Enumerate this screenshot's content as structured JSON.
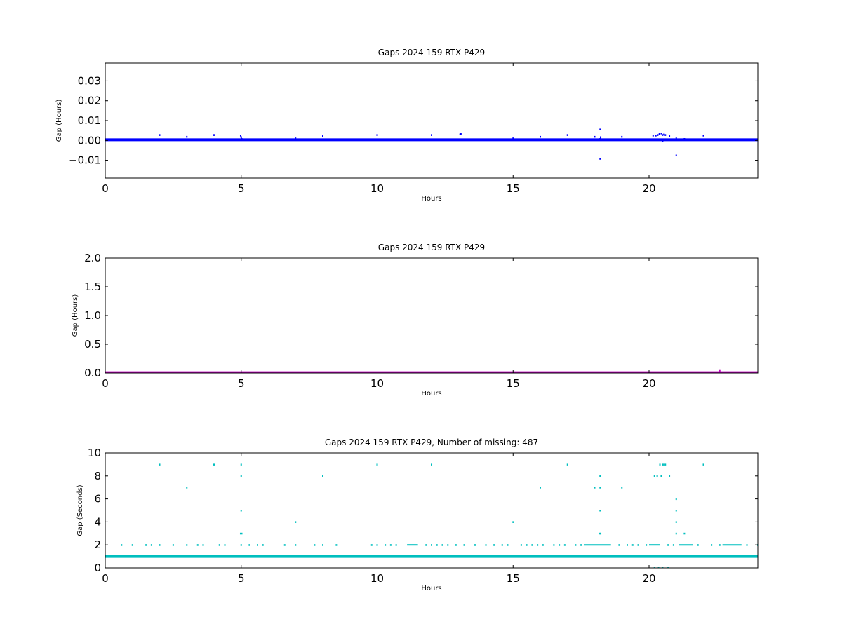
{
  "chart_data": [
    {
      "type": "scatter",
      "title": "Gaps 2024 159 RTX  P429",
      "xlabel": "Hours",
      "ylabel": "Gap (Hours)",
      "xlim": [
        0,
        24
      ],
      "ylim": [
        -0.019,
        0.039
      ],
      "xticks": [
        0,
        5,
        10,
        15,
        20
      ],
      "yticks": [
        -0.01,
        0.0,
        0.01,
        0.02,
        0.03
      ],
      "ytick_labels": [
        "−0.01",
        "0.00",
        "0.01",
        "0.02",
        "0.03"
      ],
      "grid": false,
      "color": "#0000ff",
      "baseline": {
        "y": 0.0003,
        "x_start": 0,
        "x_end": 24
      },
      "series": [
        {
          "x": [
            2.0,
            3.0,
            4.0,
            4.98,
            5.0,
            5.02,
            7.0,
            8.0,
            10.0,
            12.0,
            13.05,
            13.08,
            15.0,
            16.0,
            17.0,
            18.0,
            18.2,
            18.2,
            18.22,
            18.2,
            19.0,
            20.15,
            20.25,
            20.32,
            20.38,
            20.45,
            20.5,
            20.55,
            20.6,
            20.5,
            20.75,
            21.0,
            21.0,
            21.3,
            22.0,
            22.6
          ],
          "y": [
            0.0028,
            0.0019,
            0.0028,
            0.0025,
            0.0017,
            0.0008,
            0.0011,
            0.0022,
            0.0028,
            0.0028,
            0.0031,
            0.0033,
            0.0011,
            0.0019,
            0.0028,
            0.0019,
            0.0056,
            0.0008,
            0.0017,
            -0.0092,
            0.0019,
            0.0025,
            0.0025,
            0.0028,
            0.0033,
            0.0036,
            0.0028,
            0.0031,
            0.0028,
            -0.0003,
            0.0022,
            0.0011,
            -0.0075,
            0.0008,
            0.0025,
            0.0003
          ]
        }
      ]
    },
    {
      "type": "scatter",
      "title": "Gaps 2024 159 RTX  P429",
      "xlabel": "Hours",
      "ylabel": "Gap (Hours)",
      "xlim": [
        0,
        24
      ],
      "ylim": [
        0,
        2.0
      ],
      "xticks": [
        0,
        5,
        10,
        15,
        20
      ],
      "yticks": [
        0.0,
        0.5,
        1.0,
        1.5,
        2.0
      ],
      "ytick_labels": [
        "0.0",
        "0.5",
        "1.0",
        "1.5",
        "2.0"
      ],
      "grid": false,
      "color": "#bf00bf",
      "baseline": {
        "y": 0.005,
        "x_start": 0,
        "x_end": 24
      },
      "series": [
        {
          "x": [
            22.6
          ],
          "y": [
            0.04
          ]
        }
      ]
    },
    {
      "type": "scatter",
      "title": "Gaps 2024 159 RTX  P429, Number of missing: 487",
      "xlabel": "Hours",
      "ylabel": "Gap (Seconds)",
      "xlim": [
        0,
        24
      ],
      "ylim": [
        0,
        10
      ],
      "xticks": [
        0,
        5,
        10,
        15,
        20
      ],
      "yticks": [
        0,
        2,
        4,
        6,
        8,
        10
      ],
      "ytick_labels": [
        "0",
        "2",
        "4",
        "6",
        "8",
        "10"
      ],
      "grid": false,
      "color": "#00bfbf",
      "baseline": {
        "y": 1,
        "x_start": 0,
        "x_end": 24
      },
      "dense_bands": [
        {
          "x_start": 11.1,
          "x_end": 11.5,
          "y": 2
        },
        {
          "x_start": 17.6,
          "x_end": 18.6,
          "y": 2
        },
        {
          "x_start": 20.0,
          "x_end": 20.4,
          "y": 2
        },
        {
          "x_start": 21.1,
          "x_end": 21.6,
          "y": 2
        },
        {
          "x_start": 22.7,
          "x_end": 23.4,
          "y": 2
        }
      ],
      "series": [
        {
          "x": [
            2.0,
            4.0,
            5.0,
            10.0,
            12.0,
            17.0,
            20.4,
            20.5,
            20.55,
            20.6,
            22.0,
            5.0,
            8.0,
            18.2,
            20.2,
            20.3,
            20.45,
            20.75,
            3.0,
            16.0,
            18.0,
            18.2,
            19.0,
            21.0,
            5.0,
            18.2,
            21.0,
            7.0,
            15.0,
            21.0,
            4.98,
            5.02,
            18.18,
            18.22,
            21.0,
            21.3,
            20.2,
            20.35,
            20.5,
            20.7,
            0.6,
            1.0,
            1.5,
            1.7,
            2.0,
            2.5,
            3.0,
            3.4,
            3.6,
            4.2,
            4.4,
            5.0,
            5.3,
            5.6,
            5.8,
            6.6,
            7.0,
            7.7,
            8.0,
            8.5,
            9.8,
            10.0,
            10.3,
            10.5,
            10.7,
            11.8,
            12.0,
            12.2,
            12.4,
            12.6,
            12.9,
            13.2,
            13.6,
            14.0,
            14.3,
            14.6,
            14.8,
            15.3,
            15.5,
            15.7,
            15.9,
            16.1,
            16.5,
            16.7,
            16.9,
            17.3,
            17.5,
            18.9,
            19.2,
            19.4,
            19.6,
            19.9,
            20.7,
            20.9,
            21.8,
            22.3,
            22.6,
            23.6,
            24.0
          ],
          "y": [
            9,
            9,
            9,
            9,
            9,
            9,
            9,
            9,
            9,
            9,
            9,
            8,
            8,
            8,
            8,
            8,
            8,
            8,
            7,
            7,
            7,
            7,
            7,
            6,
            5,
            5,
            5,
            4,
            4,
            4,
            3,
            3,
            3,
            3,
            3,
            3,
            0,
            0,
            0,
            0,
            2,
            2,
            2,
            2,
            2,
            2,
            2,
            2,
            2,
            2,
            2,
            2,
            2,
            2,
            2,
            2,
            2,
            2,
            2,
            2,
            2,
            2,
            2,
            2,
            2,
            2,
            2,
            2,
            2,
            2,
            2,
            2,
            2,
            2,
            2,
            2,
            2,
            2,
            2,
            2,
            2,
            2,
            2,
            2,
            2,
            2,
            2,
            2,
            2,
            2,
            2,
            2,
            2,
            2,
            2,
            2,
            2,
            2,
            2
          ]
        }
      ]
    }
  ]
}
